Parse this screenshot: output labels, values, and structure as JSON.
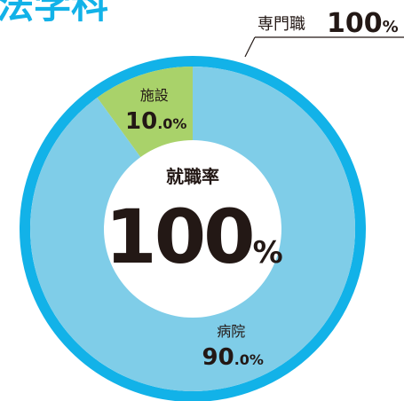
{
  "title": "法学科",
  "chart_data": {
    "type": "pie",
    "categories": [
      "施設",
      "病院"
    ],
    "values": [
      10.0,
      90.0
    ],
    "value_labels": [
      "10.0%",
      "90.0%"
    ],
    "colors": [
      "#a9d26a",
      "#7fcde8"
    ],
    "outer_ring": {
      "name": "専門職",
      "value": 100,
      "value_label": "100%",
      "color": "#12b2e8"
    },
    "center": {
      "label": "就職率",
      "value": 100,
      "value_label": "100%"
    }
  }
}
